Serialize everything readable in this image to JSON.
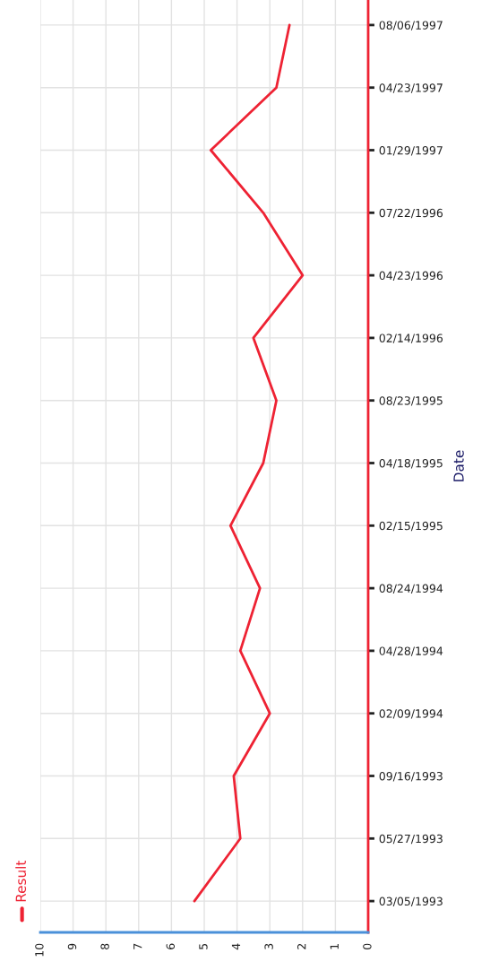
{
  "chart_data": {
    "type": "line",
    "orientation": "horizontal",
    "ylabel": "Date",
    "categories": [
      "08/06/1997",
      "04/23/1997",
      "01/29/1997",
      "07/22/1996",
      "04/23/1996",
      "02/14/1996",
      "08/23/1995",
      "04/18/1995",
      "02/15/1995",
      "08/24/1994",
      "04/28/1994",
      "02/09/1994",
      "09/16/1993",
      "05/27/1993",
      "03/05/1993"
    ],
    "series": [
      {
        "name": "Result",
        "color": "#ee2233",
        "values": [
          2.4,
          2.8,
          4.8,
          3.2,
          2.0,
          3.5,
          2.8,
          3.2,
          4.2,
          3.3,
          3.9,
          3.0,
          4.1,
          3.9,
          5.3
        ]
      }
    ],
    "xlim": [
      10,
      0
    ],
    "xticks": [
      10,
      9,
      8,
      7,
      6,
      5,
      4,
      3,
      2,
      1,
      0
    ],
    "grid": true,
    "legend": "bottom left",
    "marker": "none",
    "line_style": "solid"
  }
}
